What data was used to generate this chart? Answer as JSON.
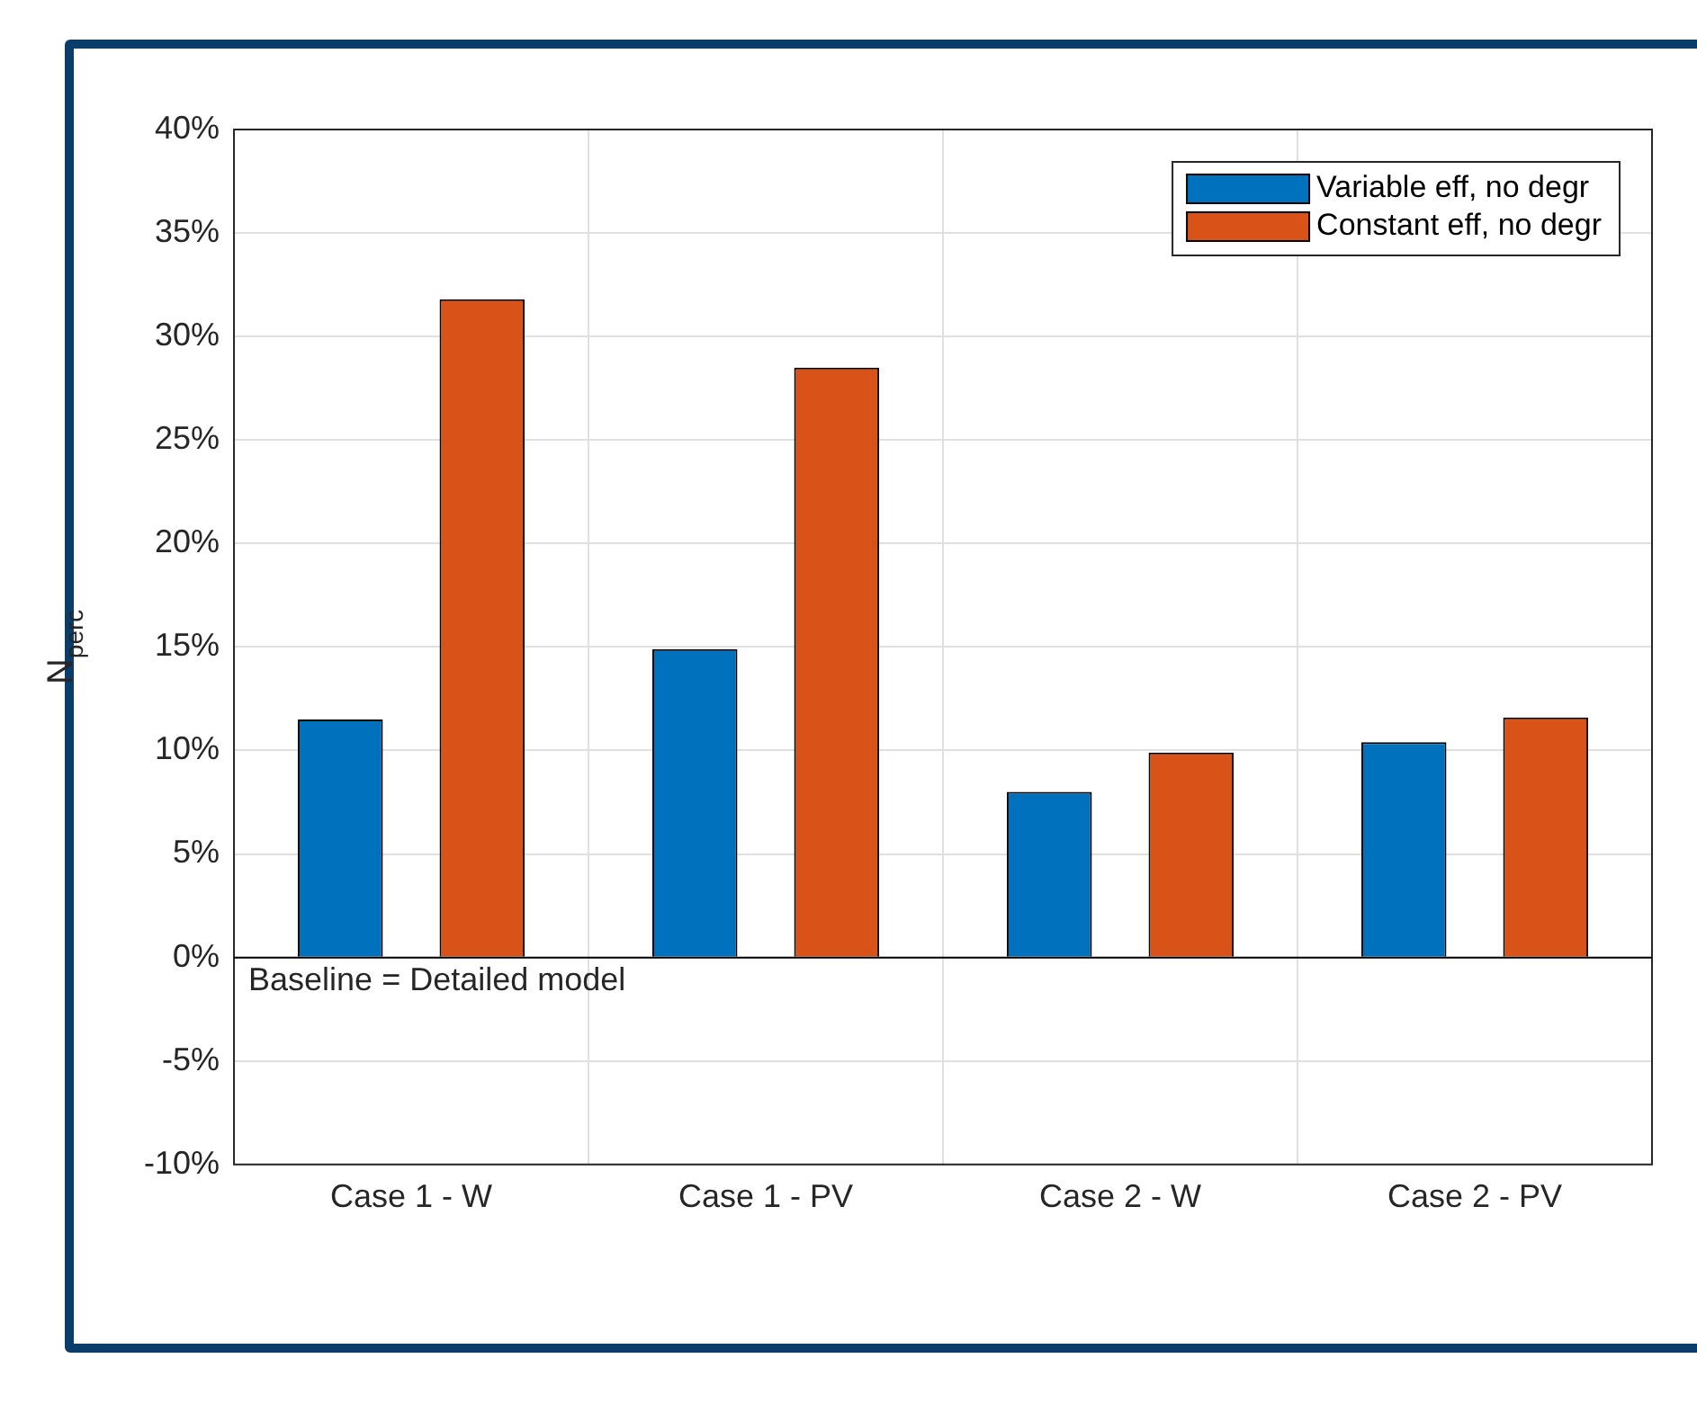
{
  "chart_data": {
    "type": "bar",
    "categories": [
      "Case 1 - W",
      "Case 1 - PV",
      "Case 2 - W",
      "Case 2 - PV"
    ],
    "series": [
      {
        "name": "Variable eff, no degr",
        "color": "#0072bd",
        "values": [
          11.5,
          14.9,
          8.0,
          10.4
        ]
      },
      {
        "name": "Constant eff, no degr",
        "color": "#d95319",
        "values": [
          31.8,
          28.5,
          9.9,
          11.6
        ]
      }
    ],
    "ylabel": "N$_{perc}$",
    "ylim": [
      -10,
      40
    ],
    "yticks": [
      {
        "value": -10,
        "label": "-10%"
      },
      {
        "value": -5,
        "label": "-5%"
      },
      {
        "value": 0,
        "label": "0%"
      },
      {
        "value": 5,
        "label": "5%"
      },
      {
        "value": 10,
        "label": "10%"
      },
      {
        "value": 15,
        "label": "15%"
      },
      {
        "value": 20,
        "label": "20%"
      },
      {
        "value": 25,
        "label": "25%"
      },
      {
        "value": 30,
        "label": "30%"
      },
      {
        "value": 35,
        "label": "35%"
      },
      {
        "value": 40,
        "label": "40%"
      }
    ],
    "ref_lines": [
      {
        "axis": "y",
        "value": 0,
        "color": "#000000"
      }
    ],
    "annotations": [
      {
        "text": "Baseline = Detailed model",
        "y": 0
      }
    ],
    "grid": true,
    "legend": "top right"
  }
}
